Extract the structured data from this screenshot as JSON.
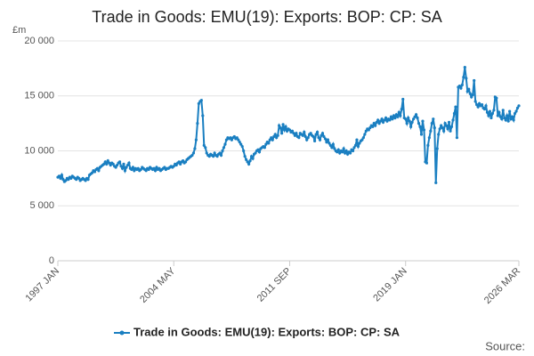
{
  "chart_data": {
    "type": "line",
    "title": "Trade in Goods: EMU(19): Exports: BOP: CP: SA",
    "y_unit": "£m",
    "source": "Source:",
    "categories": [
      "1997 JAN",
      null,
      null,
      null,
      null,
      null,
      null,
      null,
      null,
      null,
      null,
      null,
      null,
      null,
      null,
      null,
      null,
      null,
      null,
      null,
      null,
      null,
      null,
      null,
      null,
      null,
      null,
      null,
      null,
      null,
      null,
      null,
      null,
      null,
      null,
      null,
      null,
      null,
      null,
      null,
      null,
      null,
      null,
      null,
      null,
      null,
      null,
      null,
      null,
      null,
      null,
      null,
      null,
      null,
      null,
      null,
      null,
      null,
      null,
      null,
      null,
      null,
      null,
      null,
      null,
      null,
      null,
      null,
      null,
      null,
      null,
      null,
      null,
      null,
      null,
      null,
      null,
      null,
      null,
      null,
      null,
      null,
      null,
      null,
      null,
      null,
      null,
      null,
      "2004 MAY",
      null,
      null,
      null,
      null,
      null,
      null,
      null,
      null,
      null,
      null,
      null,
      null,
      null,
      null,
      null,
      null,
      null,
      null,
      null,
      null,
      null,
      null,
      null,
      null,
      null,
      null,
      null,
      null,
      null,
      null,
      null,
      null,
      null,
      null,
      null,
      null,
      null,
      null,
      null,
      null,
      null,
      null,
      null,
      null,
      null,
      null,
      null,
      null,
      null,
      null,
      null,
      null,
      null,
      null,
      null,
      null,
      null,
      null,
      null,
      null,
      null,
      null,
      null,
      null,
      null,
      null,
      null,
      null,
      null,
      null,
      null,
      null,
      null,
      null,
      null,
      null,
      null,
      null,
      null,
      null,
      null,
      null,
      null,
      null,
      null,
      null,
      null,
      "2011 SEP",
      null,
      null,
      null,
      null,
      null,
      null,
      null,
      null,
      null,
      null,
      null,
      null,
      null,
      null,
      null,
      null,
      null,
      null,
      null,
      null,
      null,
      null,
      null,
      null,
      null,
      null,
      null,
      null,
      null,
      null,
      null,
      null,
      null,
      null,
      null,
      null,
      null,
      null,
      null,
      null,
      null,
      null,
      null,
      null,
      null,
      null,
      null,
      null,
      null,
      null,
      null,
      null,
      null,
      null,
      null,
      null,
      null,
      null,
      null,
      null,
      null,
      null,
      null,
      null,
      null,
      null,
      null,
      null,
      null,
      null,
      null,
      null,
      null,
      null,
      null,
      null,
      null,
      null,
      null,
      null,
      null,
      null,
      null,
      null,
      null,
      null,
      null,
      "2019 JAN",
      null,
      null,
      null,
      null,
      null,
      null,
      null,
      null,
      null,
      null,
      null,
      null,
      null,
      null,
      null,
      null,
      null,
      null,
      null,
      null,
      null,
      null,
      null,
      null,
      null,
      null,
      null,
      null,
      null,
      null,
      null,
      null,
      null,
      null,
      null,
      null,
      null,
      null,
      null,
      null,
      null,
      null,
      null,
      null,
      null,
      null,
      null,
      null,
      null,
      null,
      null,
      null,
      null,
      null,
      null,
      null,
      null,
      null,
      null,
      null,
      null,
      null,
      null,
      null,
      null,
      null,
      null,
      null,
      null,
      null,
      null,
      null,
      null,
      null,
      null,
      null,
      null,
      null,
      null,
      null,
      null,
      null,
      null,
      null,
      null,
      "2026 MAR"
    ],
    "series": [
      {
        "name": "Trade in Goods: EMU(19): Exports: BOP: CP: SA",
        "color": "#1a7fc1",
        "values": [
          7600,
          7700,
          7500,
          7800,
          7400,
          7200,
          7300,
          7500,
          7400,
          7600,
          7500,
          7700,
          7600,
          7500,
          7400,
          7600,
          7500,
          7300,
          7400,
          7500,
          7400,
          7300,
          7500,
          7400,
          7800,
          7900,
          8000,
          8200,
          8100,
          8300,
          8400,
          8200,
          8500,
          8600,
          8700,
          8800,
          9000,
          8800,
          9100,
          8900,
          8700,
          8900,
          8800,
          8600,
          8500,
          8700,
          8900,
          9000,
          8600,
          8400,
          8800,
          8200,
          8500,
          8700,
          8900,
          8400,
          8300,
          8500,
          8200,
          8400,
          8300,
          8400,
          8200,
          8300,
          8500,
          8400,
          8300,
          8200,
          8400,
          8300,
          8500,
          8400,
          8300,
          8400,
          8200,
          8500,
          8300,
          8400,
          8200,
          8300,
          8400,
          8500,
          8300,
          8400,
          8400,
          8500,
          8600,
          8500,
          8600,
          8800,
          8700,
          8900,
          9000,
          8800,
          9000,
          9100,
          8900,
          9000,
          9200,
          9300,
          9400,
          9500,
          9600,
          9800,
          10200,
          11000,
          12500,
          14300,
          14500,
          14600,
          13200,
          10500,
          10300,
          9800,
          9600,
          9500,
          9700,
          9600,
          9500,
          9800,
          9600,
          9500,
          9700,
          9800,
          9600,
          10000,
          10300,
          10600,
          11000,
          11200,
          11100,
          11200,
          11000,
          11200,
          11300,
          11100,
          11200,
          11000,
          10800,
          10600,
          10400,
          10000,
          9500,
          9200,
          9000,
          8800,
          9100,
          9500,
          9300,
          9700,
          9800,
          10000,
          10100,
          9900,
          10200,
          10300,
          10400,
          10300,
          10600,
          10800,
          10700,
          11000,
          11200,
          11000,
          11300,
          11500,
          11200,
          11400,
          12300,
          12100,
          11600,
          12400,
          11900,
          12200,
          11800,
          12000,
          11900,
          11700,
          11800,
          11600,
          11400,
          11600,
          11300,
          11200,
          11600,
          11500,
          11400,
          11700,
          11300,
          11000,
          11200,
          11500,
          11600,
          11400,
          11300,
          10900,
          11500,
          11700,
          11200,
          11000,
          11400,
          11600,
          11300,
          11100,
          10800,
          11000,
          10700,
          10500,
          10300,
          10600,
          10200,
          10000,
          9900,
          10100,
          9800,
          10000,
          9900,
          10200,
          9800,
          10000,
          9700,
          9900,
          9800,
          10100,
          10000,
          10300,
          10500,
          11000,
          10400,
          10700,
          10900,
          11000,
          11200,
          11500,
          11800,
          12000,
          11900,
          12100,
          12300,
          12200,
          12500,
          12300,
          12600,
          12800,
          12500,
          12700,
          12900,
          12600,
          12800,
          13000,
          12700,
          12900,
          12800,
          13100,
          12900,
          13200,
          13000,
          13300,
          13100,
          13500,
          13200,
          13800,
          14700,
          13000,
          12900,
          12500,
          13000,
          12700,
          12200,
          12600,
          12900,
          13100,
          13300,
          13000,
          12500,
          12200,
          11500,
          12700,
          11900,
          9000,
          8900,
          10500,
          11200,
          11800,
          12500,
          12900,
          12100,
          7100,
          10200,
          11500,
          12000,
          12300,
          12100,
          11800,
          12500,
          12300,
          12000,
          12600,
          11800,
          12200,
          12800,
          13400,
          14000,
          11200,
          15800,
          15900,
          15700,
          16000,
          16700,
          17600,
          16600,
          15400,
          15600,
          15200,
          14900,
          15100,
          16400,
          14500,
          14200,
          14000,
          14300,
          14100,
          14200,
          13900,
          13800,
          14100,
          13500,
          13200,
          13600,
          13000,
          13400,
          13700,
          14900,
          14800,
          13200,
          13500,
          13100,
          12900,
          13700,
          13000,
          12800,
          13200,
          12700,
          13600,
          12900,
          13100,
          12800,
          13400,
          13600,
          13900,
          14100
        ]
      }
    ],
    "ylim": [
      0,
      20000
    ],
    "yticks": [
      0,
      {
        "value": 5000,
        "label": "5 000"
      },
      {
        "value": 10000,
        "label": "10 000"
      },
      {
        "value": 15000,
        "label": "15 000"
      },
      {
        "value": 20000,
        "label": "20 000"
      }
    ],
    "grid": true
  }
}
